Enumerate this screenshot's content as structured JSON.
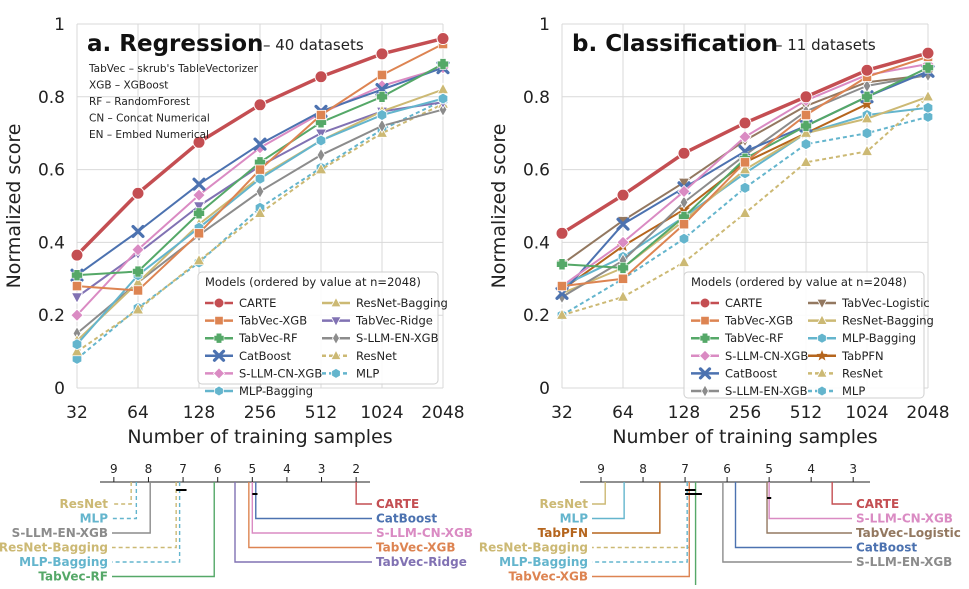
{
  "colors": {
    "CARTE": "#c44e52",
    "TabVec-XGB": "#dd8452",
    "TabVec-RF": "#55a868",
    "CatBoost": "#4c72b0",
    "S-LLM-CN-XGB": "#da8bc3",
    "MLP-Bagging": "#64b5cd",
    "ResNet-Bagging": "#ccb974",
    "TabVec-Ridge": "#8172b3",
    "S-LLM-EN-XGB": "#8c8c8c",
    "ResNet": "#ccb974",
    "MLP": "#64b5cd",
    "TabVec-Logistic": "#937860",
    "TabPFN": "#b5651d"
  },
  "styles": {
    "CARTE": {
      "marker": "circle",
      "dashed": false,
      "width": 3.5
    },
    "TabVec-XGB": {
      "marker": "square",
      "dashed": false,
      "width": 2
    },
    "TabVec-RF": {
      "marker": "plus",
      "dashed": false,
      "width": 2
    },
    "CatBoost": {
      "marker": "x",
      "dashed": false,
      "width": 2
    },
    "S-LLM-CN-XGB": {
      "marker": "diamond",
      "dashed": false,
      "width": 2
    },
    "MLP-Bagging": {
      "marker": "hexagon",
      "dashed": false,
      "width": 2
    },
    "ResNet-Bagging": {
      "marker": "triangle-up",
      "dashed": false,
      "width": 2
    },
    "TabVec-Ridge": {
      "marker": "triangle-down",
      "dashed": false,
      "width": 2
    },
    "S-LLM-EN-XGB": {
      "marker": "thin-diamond",
      "dashed": false,
      "width": 2
    },
    "ResNet": {
      "marker": "triangle-up",
      "dashed": true,
      "width": 2
    },
    "MLP": {
      "marker": "hexagon",
      "dashed": true,
      "width": 2
    },
    "TabVec-Logistic": {
      "marker": "triangle-down",
      "dashed": false,
      "width": 2
    },
    "TabPFN": {
      "marker": "star",
      "dashed": false,
      "width": 2
    }
  },
  "chart_data": [
    {
      "type": "line",
      "title": "a. Regression",
      "subtitle": "– 40 datasets",
      "xlabel": "Number of training samples",
      "ylabel": "Normalized score",
      "x": [
        32,
        64,
        128,
        256,
        512,
        1024,
        2048
      ],
      "xscale": "log2",
      "ylim": [
        0,
        1
      ],
      "yticks": [
        "0",
        "0.2",
        "0.4",
        "0.6",
        "0.8",
        "1"
      ],
      "grid": true,
      "abbreviations": [
        "TabVec – skrub's TableVectorizer",
        "XGB – XGBoost",
        "RF – RandomForest",
        "CN – Concat Numerical",
        "EN – Embed Numerical"
      ],
      "legend": {
        "title": "Models (ordered by value at n=2048)",
        "placement": "lower-right",
        "columns": [
          [
            "CARTE",
            "TabVec-XGB",
            "TabVec-RF",
            "CatBoost",
            "S-LLM-CN-XGB",
            "MLP-Bagging"
          ],
          [
            "ResNet-Bagging",
            "TabVec-Ridge",
            "S-LLM-EN-XGB",
            "ResNet",
            "MLP"
          ]
        ]
      },
      "series": [
        {
          "name": "CARTE",
          "values": [
            0.365,
            0.535,
            0.675,
            0.778,
            0.855,
            0.918,
            0.96
          ]
        },
        {
          "name": "TabVec-XGB",
          "values": [
            0.28,
            0.268,
            0.425,
            0.6,
            0.75,
            0.86,
            0.945
          ]
        },
        {
          "name": "TabVec-RF",
          "values": [
            0.31,
            0.32,
            0.48,
            0.62,
            0.73,
            0.8,
            0.89
          ]
        },
        {
          "name": "CatBoost",
          "values": [
            0.31,
            0.43,
            0.56,
            0.67,
            0.76,
            0.82,
            0.88
          ]
        },
        {
          "name": "S-LLM-CN-XGB",
          "values": [
            0.2,
            0.38,
            0.53,
            0.66,
            0.755,
            0.83,
            0.88
          ]
        },
        {
          "name": "MLP-Bagging",
          "values": [
            0.12,
            0.31,
            0.44,
            0.575,
            0.68,
            0.75,
            0.795
          ]
        },
        {
          "name": "ResNet-Bagging",
          "values": [
            0.13,
            0.29,
            0.45,
            0.58,
            0.68,
            0.76,
            0.82
          ]
        },
        {
          "name": "TabVec-Ridge",
          "values": [
            0.25,
            0.37,
            0.5,
            0.61,
            0.7,
            0.76,
            0.785
          ]
        },
        {
          "name": "S-LLM-EN-XGB",
          "values": [
            0.15,
            0.29,
            0.42,
            0.54,
            0.64,
            0.72,
            0.765
          ]
        },
        {
          "name": "ResNet",
          "values": [
            0.1,
            0.215,
            0.35,
            0.48,
            0.6,
            0.7,
            0.78
          ]
        },
        {
          "name": "MLP",
          "values": [
            0.08,
            0.22,
            0.345,
            0.495,
            0.605,
            0.71,
            0.79
          ]
        }
      ],
      "cd_diagram": {
        "ticks": [
          9,
          8,
          7,
          6,
          5,
          4,
          3,
          2
        ],
        "left": [
          {
            "name": "ResNet",
            "rank": 8.5,
            "dashed": true
          },
          {
            "name": "MLP",
            "rank": 8.35,
            "dashed": true
          },
          {
            "name": "S-LLM-EN-XGB",
            "rank": 7.95,
            "dashed": false
          },
          {
            "name": "ResNet-Bagging",
            "rank": 7.2,
            "dashed": true
          },
          {
            "name": "MLP-Bagging",
            "rank": 7.1,
            "dashed": true
          },
          {
            "name": "TabVec-RF",
            "rank": 6.1,
            "dashed": false
          }
        ],
        "right": [
          {
            "name": "CARTE",
            "rank": 2.0,
            "dashed": false
          },
          {
            "name": "CatBoost",
            "rank": 4.9,
            "dashed": false
          },
          {
            "name": "S-LLM-CN-XGB",
            "rank": 5.0,
            "dashed": false
          },
          {
            "name": "TabVec-XGB",
            "rank": 5.1,
            "dashed": false
          },
          {
            "name": "TabVec-Ridge",
            "rank": 5.5,
            "dashed": false
          }
        ],
        "cliques": [
          [
            7.2,
            6.9
          ],
          [
            5.0,
            4.85
          ]
        ]
      }
    },
    {
      "type": "line",
      "title": "b. Classification",
      "subtitle": "– 11 datasets",
      "xlabel": "Number of training samples",
      "ylabel": "Normalized score",
      "x": [
        32,
        64,
        128,
        256,
        512,
        1024,
        2048
      ],
      "xscale": "log2",
      "ylim": [
        0,
        1
      ],
      "yticks": [
        "0",
        "0.2",
        "0.4",
        "0.6",
        "0.8",
        "1"
      ],
      "grid": true,
      "legend": {
        "title": "Models (ordered by value at n=2048)",
        "placement": "lower-right",
        "columns": [
          [
            "CARTE",
            "TabVec-XGB",
            "TabVec-RF",
            "S-LLM-CN-XGB",
            "CatBoost",
            "S-LLM-EN-XGB"
          ],
          [
            "TabVec-Logistic",
            "ResNet-Bagging",
            "MLP-Bagging",
            "TabPFN",
            "ResNet",
            "MLP"
          ]
        ]
      },
      "series": [
        {
          "name": "CARTE",
          "values": [
            0.425,
            0.53,
            0.645,
            0.728,
            0.8,
            0.873,
            0.92
          ]
        },
        {
          "name": "TabVec-XGB",
          "values": [
            0.28,
            0.3,
            0.45,
            0.62,
            0.75,
            0.855,
            0.91
          ]
        },
        {
          "name": "TabVec-RF",
          "values": [
            0.34,
            0.33,
            0.47,
            0.63,
            0.72,
            0.8,
            0.88
          ]
        },
        {
          "name": "S-LLM-CN-XGB",
          "values": [
            0.28,
            0.4,
            0.54,
            0.69,
            0.79,
            0.86,
            0.89
          ]
        },
        {
          "name": "CatBoost",
          "values": [
            0.26,
            0.45,
            0.55,
            0.65,
            0.72,
            0.8,
            0.87
          ]
        },
        {
          "name": "S-LLM-EN-XGB",
          "values": [
            0.25,
            0.35,
            0.51,
            0.64,
            0.76,
            0.83,
            0.86
          ]
        },
        {
          "name": "TabVec-Logistic",
          "values": [
            0.34,
            0.46,
            0.565,
            0.68,
            0.775,
            0.84,
            0.86
          ]
        },
        {
          "name": "ResNet-Bagging",
          "values": [
            0.26,
            0.33,
            0.46,
            0.6,
            0.7,
            0.74,
            0.8
          ]
        },
        {
          "name": "MLP-Bagging",
          "values": [
            0.28,
            0.36,
            0.47,
            0.59,
            0.7,
            0.75,
            0.77
          ]
        },
        {
          "name": "TabPFN",
          "values": [
            0.27,
            0.39,
            0.49,
            0.62,
            0.7,
            0.78,
            null
          ]
        },
        {
          "name": "ResNet",
          "values": [
            0.2,
            0.25,
            0.345,
            0.48,
            0.62,
            0.65,
            0.8
          ]
        },
        {
          "name": "MLP",
          "values": [
            0.2,
            0.3,
            0.41,
            0.55,
            0.67,
            0.7,
            0.745
          ]
        }
      ],
      "cd_diagram": {
        "ticks": [
          9,
          8,
          7,
          6,
          5,
          4,
          3
        ],
        "left": [
          {
            "name": "ResNet",
            "rank": 8.9,
            "dashed": false
          },
          {
            "name": "MLP",
            "rank": 8.45,
            "dashed": false
          },
          {
            "name": "TabPFN",
            "rank": 7.6,
            "dashed": false
          },
          {
            "name": "ResNet-Bagging",
            "rank": 6.9,
            "dashed": true
          },
          {
            "name": "MLP-Bagging",
            "rank": 6.95,
            "dashed": true
          },
          {
            "name": "TabVec-XGB",
            "rank": 6.9,
            "dashed": false
          },
          {
            "name": "TabVec-RF",
            "rank": 6.75,
            "dashed": false
          }
        ],
        "right": [
          {
            "name": "CARTE",
            "rank": 3.5,
            "dashed": false
          },
          {
            "name": "S-LLM-CN-XGB",
            "rank": 5.0,
            "dashed": false
          },
          {
            "name": "TabVec-Logistic",
            "rank": 5.05,
            "dashed": false
          },
          {
            "name": "CatBoost",
            "rank": 5.8,
            "dashed": false
          },
          {
            "name": "S-LLM-EN-XGB",
            "rank": 6.1,
            "dashed": false
          }
        ],
        "cliques": [
          [
            7.0,
            6.75
          ],
          [
            7.0,
            6.6
          ],
          [
            5.05,
            4.95
          ]
        ]
      }
    }
  ]
}
